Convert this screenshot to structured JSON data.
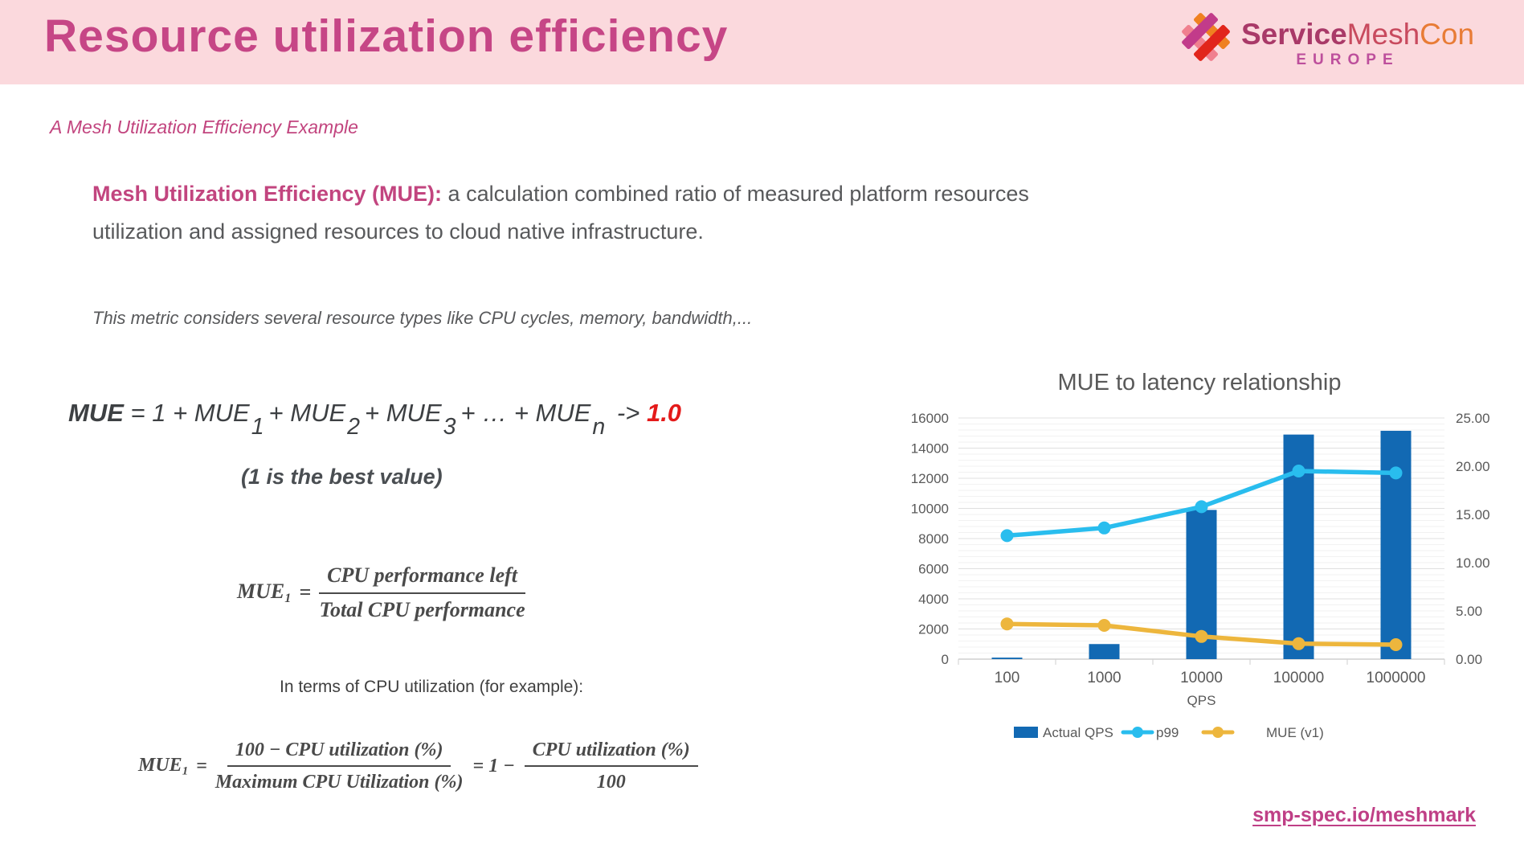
{
  "header": {
    "title": "Resource utilization efficiency",
    "logo": {
      "part1": "Service",
      "part2": "Mesh",
      "part3": "Con",
      "region": "EUROPE"
    }
  },
  "subtitle": "A Mesh Utilization Efficiency Example",
  "definition": {
    "lead": "Mesh Utilization Efficiency (MUE):",
    "line1": " a calculation combined ratio of measured platform resources",
    "line2": "utilization and assigned resources to cloud native infrastructure."
  },
  "metric_note": "This metric considers several resource types like CPU cycles, memory, bandwidth,...",
  "formula_sum": {
    "lhs": "MUE",
    "eq": " = 1 + MUE",
    "s1": "1",
    "p2": "+ MUE",
    "s2": "2",
    "p3": "+ MUE",
    "s3": "3",
    "p4": "+ … + MUE",
    "sn": "n",
    "arrow": "-> ",
    "target": "1.0",
    "note": "(1 is the best value)"
  },
  "formula_mue1": {
    "lhs": "MUE",
    "lhs_sub": "1",
    "eq": "=",
    "numerator": "CPU performance left",
    "denominator": "Total CPU performance"
  },
  "cpu_example_label": "In terms of CPU utilization (for example):",
  "formula_cpu": {
    "lhs": "MUE",
    "lhs_sub": "1",
    "eq": "=",
    "num1": "100 − CPU utilization (%)",
    "den1": "Maximum CPU Utilization (%)",
    "mid": "= 1 −",
    "num2": "CPU utilization (%)",
    "den2": "100"
  },
  "chart_data": {
    "type": "bar",
    "title": "MUE to latency relationship",
    "categories": [
      "100",
      "1000",
      "10000",
      "100000",
      "1000000"
    ],
    "xlabel": "QPS",
    "left_axis": {
      "min": 0,
      "max": 16000,
      "step": 2000,
      "minor_step": 400
    },
    "right_axis": {
      "min": 0,
      "max": 25,
      "step": 5
    },
    "grid": true,
    "legend_position": "bottom",
    "series": [
      {
        "name": "Actual QPS",
        "type": "bar",
        "axis": "left",
        "color": "#1269b3",
        "values": [
          100,
          1000,
          9900,
          14900,
          15150
        ]
      },
      {
        "name": "p99",
        "type": "line",
        "axis": "right",
        "color": "#29bdee",
        "values": [
          12.8,
          13.6,
          15.8,
          19.5,
          19.3
        ]
      },
      {
        "name": "MUE (v1)",
        "type": "line",
        "axis": "right",
        "color": "#edb63d",
        "values": [
          3.65,
          3.5,
          2.35,
          1.6,
          1.5
        ]
      }
    ]
  },
  "footer_link": "smp-spec.io/meshmark",
  "colors": {
    "accent_pink": "#c2457f",
    "header_band": "#fbd9dd",
    "red_target": "#e41a1a",
    "bar_blue": "#1269b3",
    "line_cyan": "#29bdee",
    "line_yellow": "#edb63d"
  }
}
